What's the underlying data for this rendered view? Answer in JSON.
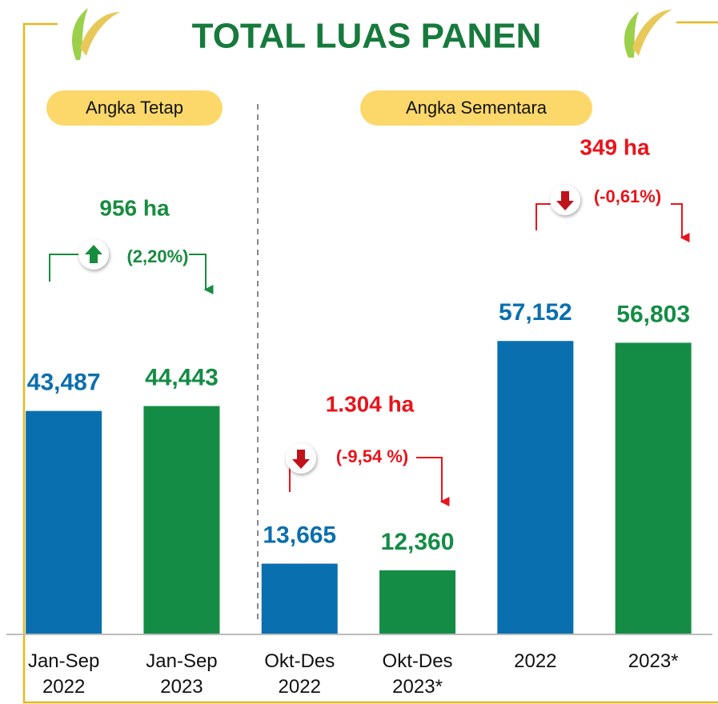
{
  "chart_data": {
    "type": "bar",
    "title": "TOTAL LUAS PANEN",
    "groups": [
      "Angka Tetap",
      "Angka Sementara"
    ],
    "categories": [
      "Jan-Sep\n2022",
      "Jan-Sep\n2023",
      "Okt-Des\n2022",
      "Okt-Des\n2023*",
      "2022",
      "2023*"
    ],
    "values": [
      43487,
      44443,
      13665,
      12360,
      57152,
      56803
    ],
    "value_labels": [
      "43,487",
      "44,443",
      "13,665",
      "12,360",
      "57,152",
      "56,803"
    ],
    "colors": [
      "#0a6fae",
      "#148c45",
      "#0a6fae",
      "#148c45",
      "#0a6fae",
      "#148c45"
    ],
    "ylim": [
      0,
      60000
    ],
    "annotations": [
      {
        "text": "956 ha",
        "change": "(2,20%)",
        "color": "#178c3f"
      },
      {
        "text": "1.304 ha",
        "change": "(-9,54 %)",
        "color": "#e8141b"
      },
      {
        "text": "349 ha",
        "change": "(-0,61%)",
        "color": "#e8141b"
      }
    ]
  }
}
